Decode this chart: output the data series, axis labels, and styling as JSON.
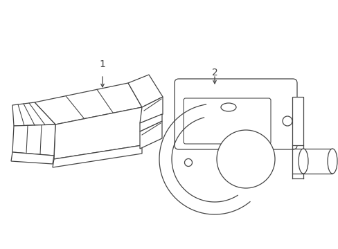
{
  "background_color": "#ffffff",
  "line_color": "#444444",
  "line_width": 0.9,
  "label1": "1",
  "label2": "2",
  "figsize": [
    4.89,
    3.6
  ],
  "dpi": 100
}
